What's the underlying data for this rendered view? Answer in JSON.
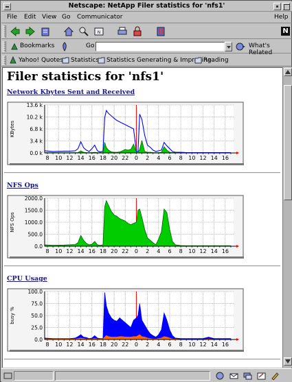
{
  "window": {
    "title": "Netscape: NetApp Filer statistics for 'nfs1'"
  },
  "menu": {
    "file": "File",
    "edit": "Edit",
    "view": "View",
    "go": "Go",
    "communicator": "Communicator",
    "help": "Help"
  },
  "toolbar": {
    "icons": [
      "back-icon",
      "forward-icon",
      "reload-icon",
      "home-icon",
      "search-icon",
      "netscape-guide-icon",
      "print-icon",
      "security-icon",
      "stop-icon"
    ],
    "brand": "N"
  },
  "location": {
    "bookmarks": "Bookmarks",
    "goto_label": "Go To:",
    "url": "",
    "related": "What's Related"
  },
  "personal": {
    "items": [
      "Yahoo! Quotes",
      "Statistics",
      "Statistics Generating & Improving",
      "Reading"
    ]
  },
  "page": {
    "heading": "Filer statistics for 'nfs1'",
    "sections": [
      {
        "link": "Network Kbytes Sent and Received"
      },
      {
        "link": "NFS Ops"
      },
      {
        "link": "CPU Usage"
      }
    ]
  },
  "colors": {
    "chrome": "#c3c3c3",
    "link": "#1a1a80",
    "green": "#00cc00",
    "blue": "#0000ff",
    "red": "#ff0000",
    "orange": "#ff6600"
  },
  "chart_data": [
    {
      "type": "area",
      "title": "",
      "ylabel": "KBytes",
      "yticks": [
        "0.0 k",
        "3.4 k",
        "6.8 k",
        "10.2 k",
        "13.6 k"
      ],
      "ylim": [
        0,
        13.6
      ],
      "xticks": [
        "8",
        "10",
        "12",
        "14",
        "16",
        "18",
        "20",
        "22",
        "0",
        "2",
        "4",
        "6",
        "8",
        "10",
        "12",
        "14",
        "16"
      ],
      "x": [
        7.5,
        9,
        11,
        12,
        13,
        13.5,
        14,
        14.5,
        15,
        15.5,
        16,
        16.5,
        17,
        17.5,
        18,
        18.3,
        18.6,
        19,
        19.5,
        20,
        20.5,
        21,
        21.5,
        22,
        22.5,
        23,
        23.5,
        24,
        24.3,
        24.6,
        25,
        25.5,
        26,
        26.5,
        27,
        27.5,
        28,
        28.5,
        29,
        29.5,
        30,
        30.5,
        31,
        32,
        33,
        34,
        35,
        36,
        37,
        38,
        39,
        40,
        41
      ],
      "series": [
        {
          "color": "blue",
          "values": [
            0.6,
            0.4,
            0.5,
            0.5,
            0.6,
            1.2,
            3.2,
            1.5,
            0.8,
            0.4,
            1.2,
            2.2,
            0.6,
            0.3,
            0.5,
            10.0,
            12.0,
            11.2,
            10.5,
            9.8,
            9.2,
            8.8,
            8.4,
            8.0,
            7.6,
            7.2,
            6.8,
            0.4,
            0.5,
            11.0,
            9.5,
            5.0,
            2.2,
            1.6,
            0.8,
            0.4,
            0.6,
            0.8,
            3.0,
            2.0,
            1.2,
            0.4,
            0.2,
            0.2,
            0.1,
            0.1,
            0.1,
            0.1,
            0.1,
            0.1,
            0.1,
            0.1,
            0.1
          ]
        },
        {
          "color": "green",
          "values": [
            0.1,
            0.1,
            0.1,
            0.1,
            0.1,
            0.1,
            0.6,
            0.2,
            0.1,
            0.1,
            0.1,
            0.2,
            0.1,
            0.1,
            0.1,
            3.0,
            1.5,
            0.8,
            0.3,
            0.2,
            0.2,
            0.3,
            0.6,
            1.0,
            0.8,
            1.0,
            2.5,
            0.2,
            0.2,
            1.0,
            3.5,
            0.4,
            0.2,
            0.2,
            0.1,
            0.1,
            0.1,
            0.2,
            1.8,
            0.8,
            0.2,
            0.1,
            0.1,
            0.0,
            0.0,
            0.0,
            0.0,
            0.0,
            0.0,
            0.0,
            0.0,
            0.0,
            0.0
          ]
        }
      ]
    },
    {
      "type": "area",
      "title": "",
      "ylabel": "NFS Ops",
      "yticks": [
        "0.0",
        "500.0",
        "1000.0",
        "1500.0",
        "2000.0"
      ],
      "ylim": [
        0,
        2000
      ],
      "xticks": [
        "8",
        "10",
        "12",
        "14",
        "16",
        "18",
        "20",
        "22",
        "0",
        "2",
        "4",
        "6",
        "8",
        "10",
        "12",
        "14",
        "16"
      ],
      "x": [
        7.5,
        9,
        11,
        12,
        13,
        13.5,
        14,
        14.5,
        15,
        15.5,
        16,
        16.5,
        17,
        17.5,
        18,
        18.3,
        18.6,
        19,
        19.5,
        20,
        20.5,
        21,
        21.5,
        22,
        22.5,
        23,
        23.5,
        24,
        24.3,
        24.6,
        25,
        25.5,
        26,
        26.5,
        27,
        27.5,
        28,
        28.5,
        29,
        29.5,
        30,
        30.5,
        31,
        32,
        33,
        34,
        35,
        36,
        37,
        38,
        39,
        40,
        41
      ],
      "series": [
        {
          "color": "green",
          "values": [
            60,
            40,
            50,
            60,
            70,
            150,
            450,
            250,
            120,
            60,
            80,
            200,
            60,
            40,
            60,
            1650,
            1900,
            1700,
            1450,
            1300,
            1250,
            1150,
            1100,
            1050,
            950,
            900,
            950,
            1000,
            1500,
            1550,
            1200,
            700,
            350,
            250,
            150,
            60,
            300,
            600,
            1550,
            1400,
            700,
            200,
            60,
            30,
            20,
            20,
            20,
            20,
            20,
            20,
            20,
            20,
            20
          ]
        }
      ]
    },
    {
      "type": "area",
      "title": "",
      "ylabel": "busy %",
      "yticks": [
        "0.0",
        "25.0",
        "50.0",
        "75.0",
        "100.0"
      ],
      "ylim": [
        0,
        100
      ],
      "xticks": [
        "8",
        "10",
        "12",
        "14",
        "16",
        "18",
        "20",
        "22",
        "0",
        "2",
        "4",
        "6",
        "8",
        "10",
        "12",
        "14",
        "16"
      ],
      "x": [
        7.5,
        9,
        11,
        12,
        13,
        13.5,
        14,
        14.5,
        15,
        15.5,
        16,
        16.5,
        17,
        17.5,
        18,
        18.3,
        18.6,
        19,
        19.5,
        20,
        20.5,
        21,
        21.5,
        22,
        22.5,
        23,
        23.5,
        24,
        24.3,
        24.6,
        25,
        25.5,
        26,
        26.5,
        27,
        27.5,
        28,
        28.5,
        29,
        29.5,
        30,
        30.5,
        31,
        32,
        33,
        34,
        35,
        36,
        37,
        38,
        39,
        40,
        41
      ],
      "series": [
        {
          "color": "blue",
          "values": [
            3,
            2,
            2,
            2,
            3,
            6,
            10,
            5,
            4,
            2,
            3,
            8,
            3,
            2,
            2,
            98,
            70,
            55,
            45,
            40,
            38,
            45,
            40,
            35,
            30,
            25,
            40,
            45,
            50,
            75,
            40,
            30,
            20,
            12,
            8,
            5,
            10,
            20,
            55,
            40,
            20,
            8,
            3,
            2,
            2,
            2,
            2,
            2,
            5,
            2,
            2,
            2,
            2
          ]
        },
        {
          "color": "orange",
          "values": [
            1,
            1,
            1,
            1,
            1,
            2,
            3,
            2,
            1,
            1,
            1,
            2,
            1,
            1,
            1,
            5,
            8,
            6,
            5,
            5,
            5,
            6,
            6,
            5,
            5,
            5,
            6,
            6,
            8,
            10,
            6,
            5,
            3,
            2,
            1,
            1,
            2,
            3,
            6,
            5,
            3,
            1,
            1,
            0,
            0,
            0,
            0,
            0,
            1,
            0,
            0,
            0,
            0
          ]
        }
      ]
    }
  ]
}
